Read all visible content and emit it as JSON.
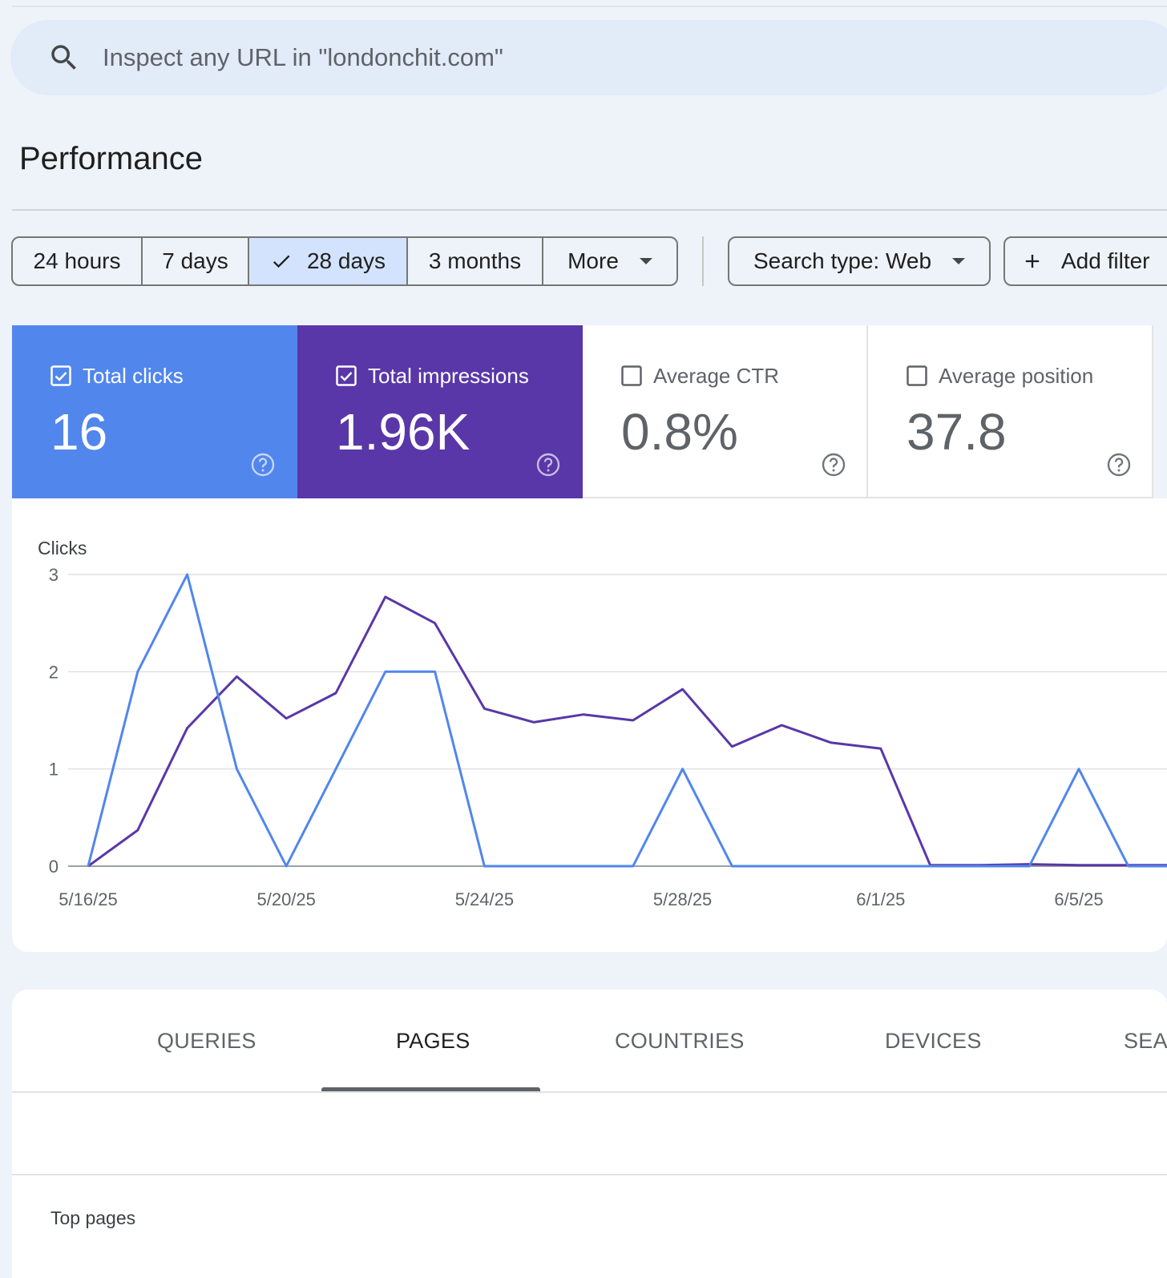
{
  "search": {
    "placeholder": "Inspect any URL in \"londonchit.com\""
  },
  "page_title": "Performance",
  "date_ranges": [
    {
      "label": "24 hours",
      "selected": false
    },
    {
      "label": "7 days",
      "selected": false
    },
    {
      "label": "28 days",
      "selected": true
    },
    {
      "label": "3 months",
      "selected": false
    },
    {
      "label": "More",
      "selected": false
    }
  ],
  "filters": {
    "search_type": "Search type: Web",
    "add_filter": "Add filter"
  },
  "metrics": [
    {
      "label": "Total clicks",
      "value": "16",
      "checked": true,
      "color": "#5186ec"
    },
    {
      "label": "Total impressions",
      "value": "1.96K",
      "checked": true,
      "color": "#5937a8"
    },
    {
      "label": "Average CTR",
      "value": "0.8%",
      "checked": false,
      "color": "#ffffff"
    },
    {
      "label": "Average position",
      "value": "37.8",
      "checked": false,
      "color": "#ffffff"
    }
  ],
  "chart_data": {
    "type": "line",
    "ylabel": "Clicks",
    "ylim": [
      0,
      3
    ],
    "yticks": [
      0,
      1,
      2,
      3
    ],
    "grid": true,
    "x": [
      "5/16/25",
      "5/17/25",
      "5/18/25",
      "5/19/25",
      "5/20/25",
      "5/21/25",
      "5/22/25",
      "5/23/25",
      "5/24/25",
      "5/25/25",
      "5/26/25",
      "5/27/25",
      "5/28/25",
      "5/29/25",
      "5/30/25",
      "5/31/25",
      "6/1/25",
      "6/2/25",
      "6/3/25",
      "6/4/25",
      "6/5/25",
      "6/6/25"
    ],
    "xtick_labels": [
      "5/16/25",
      "5/20/25",
      "5/24/25",
      "5/28/25",
      "6/1/25",
      "6/5/25"
    ],
    "series": [
      {
        "color": "#5186ec",
        "values": [
          0,
          2,
          3,
          1,
          0,
          1,
          2,
          2,
          0,
          0,
          0,
          0,
          1,
          0,
          0,
          0,
          0,
          0,
          0,
          0,
          1,
          0
        ]
      },
      {
        "color": "#5937a8",
        "values": [
          0,
          0.37,
          1.42,
          1.95,
          1.52,
          1.78,
          2.77,
          2.5,
          1.62,
          1.48,
          1.56,
          1.5,
          1.82,
          1.23,
          1.45,
          1.27,
          1.21,
          0.01,
          0.01,
          0.02,
          0.01,
          0.01
        ]
      }
    ]
  },
  "tabs": [
    {
      "label": "QUERIES",
      "active": false
    },
    {
      "label": "PAGES",
      "active": true
    },
    {
      "label": "COUNTRIES",
      "active": false
    },
    {
      "label": "DEVICES",
      "active": false
    },
    {
      "label": "SEA",
      "active": false
    }
  ],
  "table": {
    "header": "Top pages"
  },
  "colors": {
    "accent": "#0b57d0",
    "clicks": "#5186ec",
    "impressions": "#5937a8",
    "selected_range_bg": "#d3e3fd"
  },
  "icons": {
    "search": "search-icon",
    "check": "check-icon",
    "caret": "caret-down-icon",
    "plus": "plus-icon",
    "help": "help-icon"
  }
}
